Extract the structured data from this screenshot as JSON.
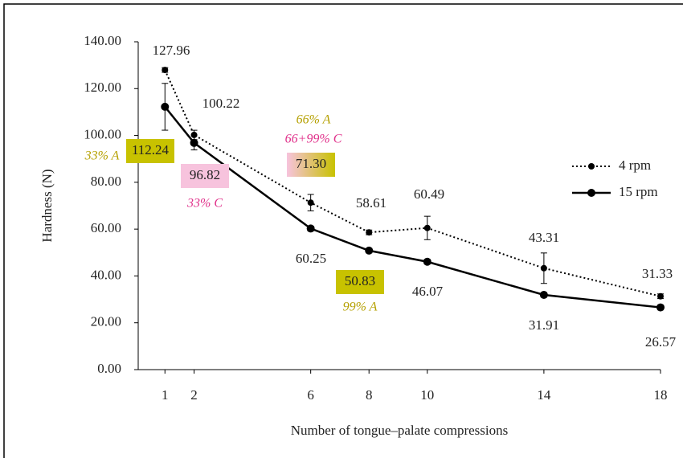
{
  "chart_data": {
    "type": "line",
    "y_label": "Hardness (N)",
    "x_label": "Number of tongue–palate compressions",
    "x": [
      1,
      2,
      6,
      8,
      10,
      14,
      18
    ],
    "xlim": [
      0,
      18
    ],
    "xticks": [
      1,
      2,
      6,
      8,
      10,
      14,
      18
    ],
    "ylim": [
      0,
      140
    ],
    "yticks": [
      {
        "value": 0,
        "label": "0.00"
      },
      {
        "value": 20,
        "label": "20.00"
      },
      {
        "value": 40,
        "label": "40.00"
      },
      {
        "value": 60,
        "label": "60.00"
      },
      {
        "value": 80,
        "label": "80.00"
      },
      {
        "value": 100,
        "label": "100.00"
      },
      {
        "value": 120,
        "label": "120.00"
      },
      {
        "value": 140,
        "label": "140.00"
      }
    ],
    "grid": false,
    "legend": "right",
    "series": [
      {
        "name": "4 rpm",
        "color": "#000000",
        "dash": "dotted",
        "values": [
          127.96,
          100.22,
          71.3,
          58.61,
          60.49,
          43.31,
          31.33
        ],
        "value_labels": [
          "127.96",
          "100.22",
          "71.30",
          "58.61",
          "60.49",
          "43.31",
          "31.33"
        ],
        "errors": [
          1,
          2,
          3.5,
          1,
          5,
          6.5,
          1
        ]
      },
      {
        "name": "15 rpm",
        "color": "#000000",
        "dash": "solid",
        "values": [
          112.24,
          96.82,
          60.25,
          50.83,
          46.07,
          31.91,
          26.57
        ],
        "value_labels": [
          "112.24",
          "96.82",
          "60.25",
          "50.83",
          "46.07",
          "31.91",
          "26.57"
        ],
        "errors": [
          10,
          3,
          1,
          1,
          1,
          1,
          1
        ]
      }
    ],
    "annotations": [
      {
        "text": "33% A",
        "color": "#b5a000"
      },
      {
        "text": "33% C",
        "color": "#e0308a"
      },
      {
        "text": "66% A",
        "color": "#b5a000"
      },
      {
        "text": "66+99% C",
        "color": "#e0308a"
      },
      {
        "text": "99% A",
        "color": "#b5a000"
      }
    ]
  }
}
